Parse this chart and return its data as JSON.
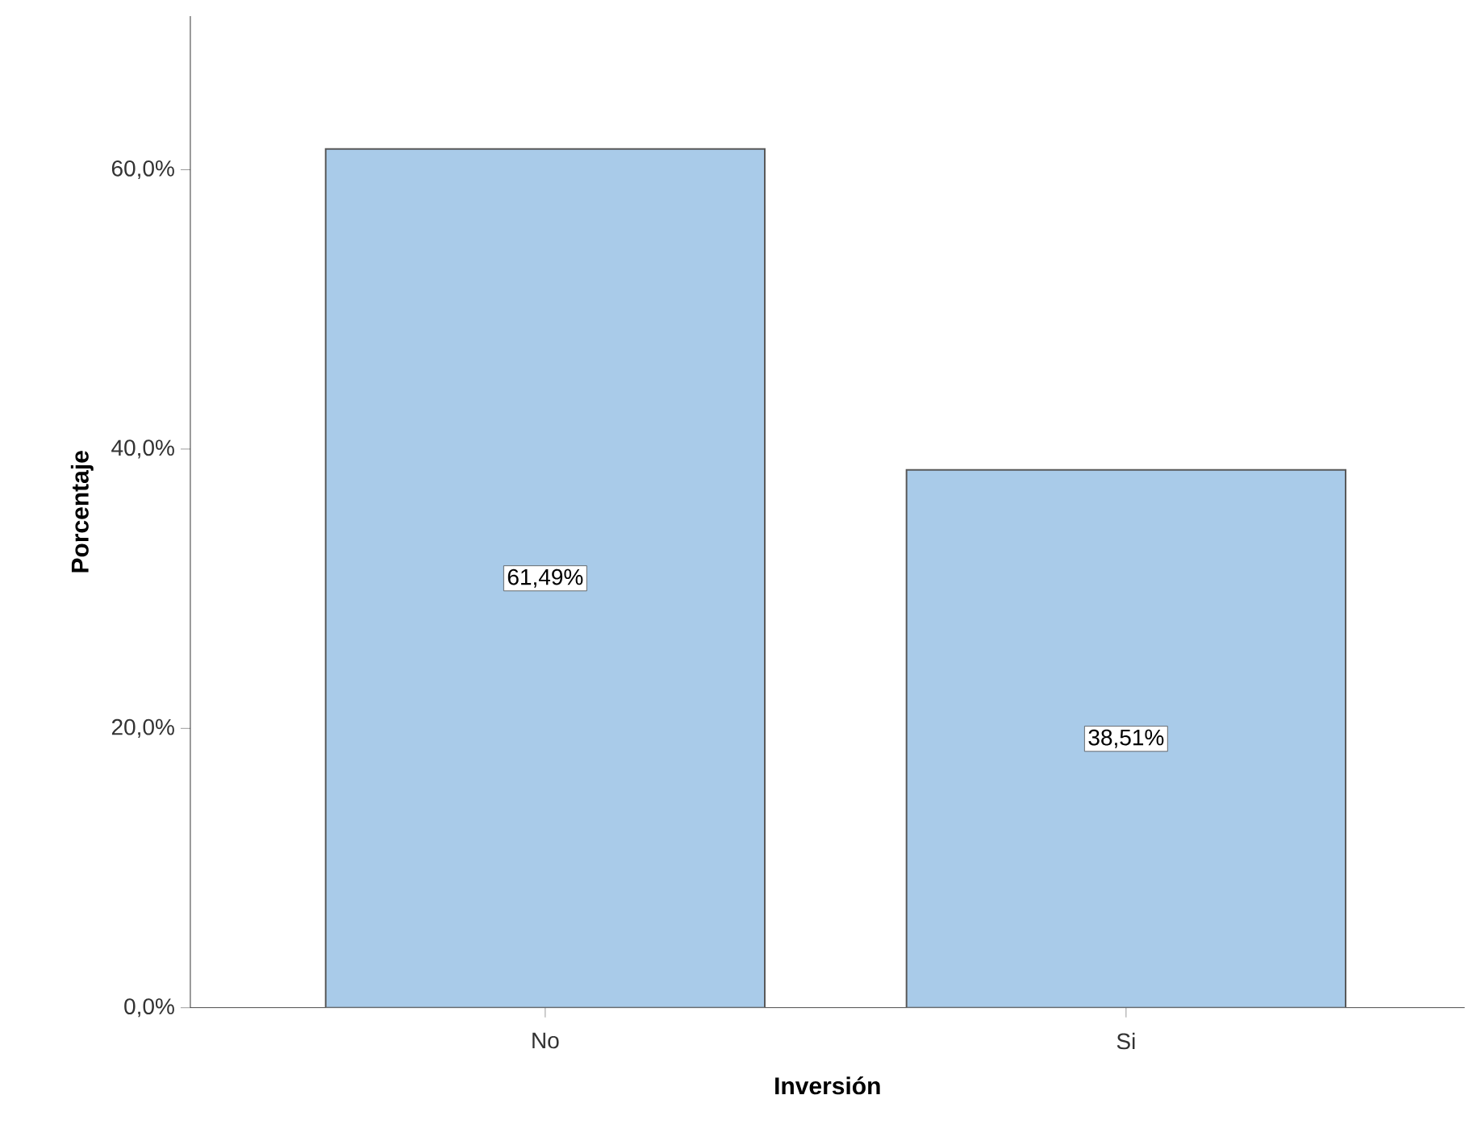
{
  "chart_data": {
    "type": "bar",
    "xlabel": "Inversión",
    "ylabel": "Porcentaje",
    "categories": [
      "No",
      "Si"
    ],
    "values": [
      61.49,
      38.51
    ],
    "value_labels": [
      "61,49%",
      "38,51%"
    ],
    "color": "#a9cbe9",
    "ylim": [
      0,
      71
    ],
    "yticks": [
      {
        "value": 0,
        "label": "0,0%"
      },
      {
        "value": 20,
        "label": "20,0%"
      },
      {
        "value": 40,
        "label": "40,0%"
      },
      {
        "value": 60,
        "label": "60,0%"
      }
    ],
    "grid": false
  }
}
